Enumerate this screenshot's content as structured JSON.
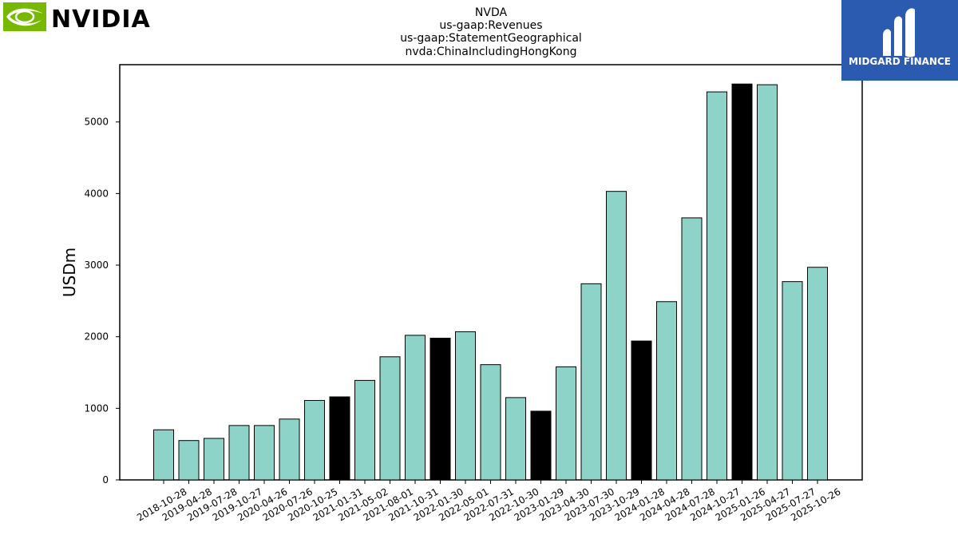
{
  "branding": {
    "left_logo_text": "NVIDIA",
    "right_logo_text": "MIDGARD FINANCE",
    "left_logo_green": "#76b900",
    "right_logo_bg": "#2b5bb0"
  },
  "chart_data": {
    "type": "bar",
    "title_lines": [
      "NVDA",
      "us-gaap:Revenues",
      "us-gaap:StatementGeographical",
      "nvda:ChinaIncludingHongKong"
    ],
    "xlabel": "",
    "ylabel": "USDm",
    "ylim": [
      0,
      5800
    ],
    "yticks": [
      0,
      1000,
      2000,
      3000,
      4000,
      5000
    ],
    "grid": false,
    "colors": {
      "default": "#8dd3c7",
      "highlight": "#000000",
      "edge": "#000000"
    },
    "categories": [
      "2018-10-28",
      "2019-04-28",
      "2019-07-28",
      "2019-10-27",
      "2020-04-26",
      "2020-07-26",
      "2020-10-25",
      "2021-01-31",
      "2021-05-02",
      "2021-08-01",
      "2021-10-31",
      "2022-01-30",
      "2022-05-01",
      "2022-07-31",
      "2022-10-30",
      "2023-01-29",
      "2023-04-30",
      "2023-07-30",
      "2023-10-29",
      "2024-01-28",
      "2024-04-28",
      "2024-07-28",
      "2024-10-27",
      "2025-01-26",
      "2025-04-27",
      "2025-07-27",
      "2025-10-26"
    ],
    "values": [
      700,
      550,
      580,
      760,
      760,
      850,
      1110,
      1160,
      1390,
      1720,
      2020,
      1980,
      2070,
      1610,
      1150,
      960,
      1580,
      2740,
      4030,
      1940,
      2490,
      3660,
      5420,
      5530,
      5520,
      2770,
      2970
    ],
    "highlighted": [
      false,
      false,
      false,
      false,
      false,
      false,
      false,
      true,
      false,
      false,
      false,
      true,
      false,
      false,
      false,
      true,
      false,
      false,
      false,
      true,
      false,
      false,
      false,
      true,
      false,
      false,
      false
    ]
  }
}
